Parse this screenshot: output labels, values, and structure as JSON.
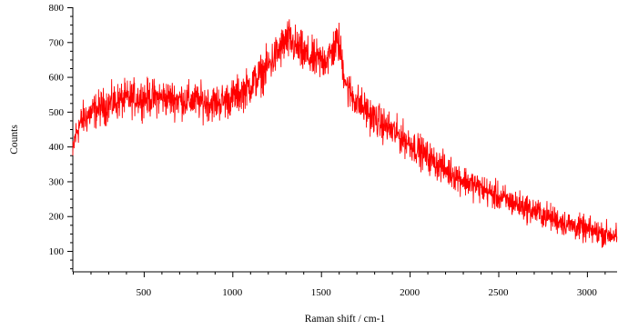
{
  "chart_data": {
    "type": "line",
    "title": "",
    "xlabel": "Raman shift / cm-1",
    "ylabel": "Counts",
    "xlim": [
      100,
      3170
    ],
    "ylim": [
      40,
      800
    ],
    "x_ticks": [
      500,
      1000,
      1500,
      2000,
      2500,
      3000
    ],
    "y_ticks": [
      100,
      200,
      300,
      400,
      500,
      600,
      700,
      800
    ],
    "grid": false,
    "legend": "none",
    "series": [
      {
        "color": "#ff0000",
        "noise_amplitude": 25,
        "x": [
          100,
          110,
          130,
          160,
          200,
          250,
          300,
          350,
          400,
          450,
          500,
          600,
          700,
          800,
          900,
          950,
          1000,
          1050,
          1100,
          1150,
          1200,
          1250,
          1300,
          1320,
          1350,
          1400,
          1450,
          1500,
          1550,
          1580,
          1600,
          1620,
          1650,
          1700,
          1800,
          1900,
          2000,
          2100,
          2200,
          2300,
          2400,
          2500,
          2600,
          2700,
          2800,
          2900,
          3000,
          3100,
          3170
        ],
        "values": [
          370,
          420,
          455,
          480,
          495,
          510,
          520,
          530,
          535,
          540,
          540,
          540,
          535,
          530,
          525,
          530,
          540,
          555,
          575,
          600,
          630,
          665,
          700,
          705,
          690,
          665,
          650,
          645,
          660,
          690,
          700,
          640,
          565,
          530,
          480,
          445,
          410,
          370,
          335,
          305,
          280,
          255,
          235,
          215,
          195,
          175,
          160,
          150,
          145
        ]
      }
    ]
  }
}
